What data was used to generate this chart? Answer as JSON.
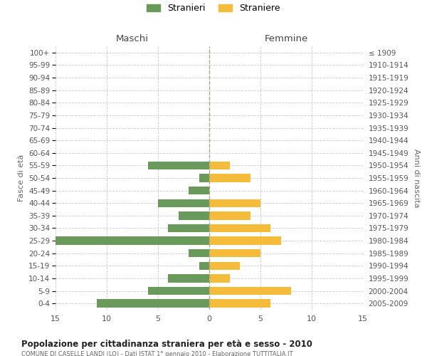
{
  "age_groups": [
    "0-4",
    "5-9",
    "10-14",
    "15-19",
    "20-24",
    "25-29",
    "30-34",
    "35-39",
    "40-44",
    "45-49",
    "50-54",
    "55-59",
    "60-64",
    "65-69",
    "70-74",
    "75-79",
    "80-84",
    "85-89",
    "90-94",
    "95-99",
    "100+"
  ],
  "birth_years": [
    "2005-2009",
    "2000-2004",
    "1995-1999",
    "1990-1994",
    "1985-1989",
    "1980-1984",
    "1975-1979",
    "1970-1974",
    "1965-1969",
    "1960-1964",
    "1955-1959",
    "1950-1954",
    "1945-1949",
    "1940-1944",
    "1935-1939",
    "1930-1934",
    "1925-1929",
    "1920-1924",
    "1915-1919",
    "1910-1914",
    "≤ 1909"
  ],
  "maschi": [
    11,
    6,
    4,
    1,
    2,
    15,
    4,
    3,
    5,
    2,
    1,
    6,
    0,
    0,
    0,
    0,
    0,
    0,
    0,
    0,
    0
  ],
  "femmine": [
    6,
    8,
    2,
    3,
    5,
    7,
    6,
    4,
    5,
    0,
    4,
    2,
    0,
    0,
    0,
    0,
    0,
    0,
    0,
    0,
    0
  ],
  "maschi_color": "#6a9a5b",
  "femmine_color": "#f5bc3b",
  "title": "Popolazione per cittadinanza straniera per età e sesso - 2010",
  "subtitle": "COMUNE DI CASELLE LANDI (LO) - Dati ISTAT 1° gennaio 2010 - Elaborazione TUTTITALIA.IT",
  "xlabel_left": "Maschi",
  "xlabel_right": "Femmine",
  "ylabel_left": "Fasce di età",
  "ylabel_right": "Anni di nascita",
  "legend_maschi": "Stranieri",
  "legend_femmine": "Straniere",
  "xlim": 15,
  "background_color": "#ffffff",
  "grid_color": "#cccccc"
}
